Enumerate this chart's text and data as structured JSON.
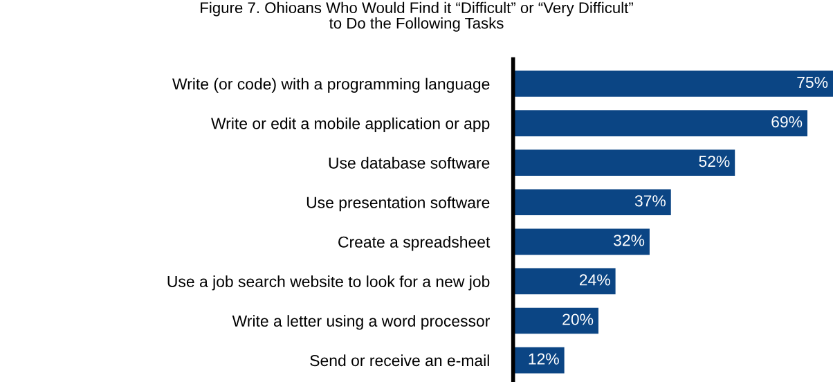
{
  "chart_data": {
    "type": "bar",
    "orientation": "horizontal",
    "title": "Figure 7. Ohioans Who Would Find it “Difficult” or “Very Difficult”\nto Do the Following Tasks",
    "categories": [
      "Write (or code) with a programming language",
      "Write or edit a mobile application or app",
      "Use database software",
      "Use presentation software",
      "Create a spreadsheet",
      "Use a job search website to look for a new job",
      "Write a letter using a word processor",
      "Send or receive an e-mail"
    ],
    "values": [
      75,
      69,
      52,
      37,
      32,
      24,
      20,
      12
    ],
    "value_labels": [
      "75%",
      "69%",
      "52%",
      "37%",
      "32%",
      "24%",
      "20%",
      "12%"
    ],
    "color": "#0b4584",
    "grid": false,
    "legend": false
  }
}
